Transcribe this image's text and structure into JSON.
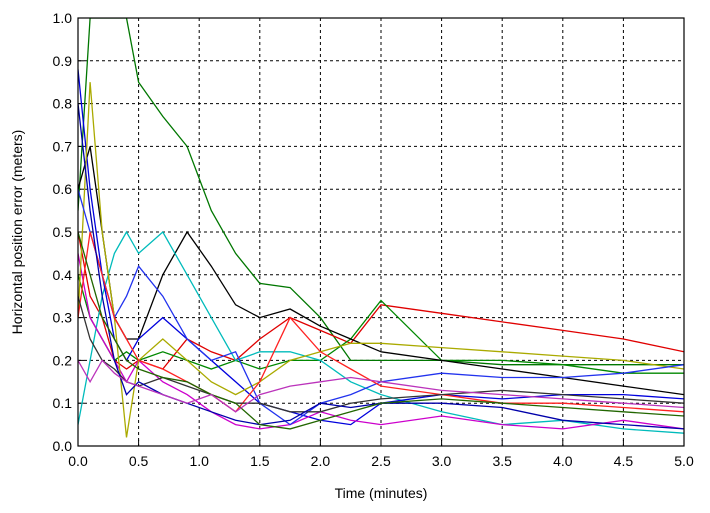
{
  "chart_data": {
    "type": "line",
    "xlabel": "Time (minutes)",
    "ylabel": "Horizontal position error (meters)",
    "x": [
      0,
      0.1,
      0.2,
      0.3,
      0.4,
      0.5,
      0.7,
      0.9,
      1.1,
      1.3,
      1.5,
      1.75,
      2,
      2.25,
      2.5,
      3,
      3.5,
      4,
      4.5,
      5
    ],
    "xlim": [
      0,
      5
    ],
    "ylim": [
      0,
      1
    ],
    "xticks": [
      {
        "value": 0,
        "label": "0.0"
      },
      0.5,
      {
        "value": 1,
        "label": "1.0"
      },
      1.5,
      {
        "value": 2,
        "label": "2.0"
      },
      2.5,
      {
        "value": 3,
        "label": "3.0"
      },
      3.5,
      {
        "value": 4,
        "label": "4.0"
      },
      4.5,
      {
        "value": 5,
        "label": "5.0"
      }
    ],
    "yticks": [
      {
        "value": 0,
        "label": "0.0"
      },
      0.1,
      0.2,
      0.3,
      0.4,
      0.5,
      0.6,
      0.7,
      0.8,
      0.9,
      {
        "value": 1,
        "label": "1.0"
      }
    ],
    "grid": true,
    "series": [
      {
        "color": "#007700",
        "values": [
          0.55,
          1.0,
          1.0,
          1.0,
          1.0,
          0.85,
          0.77,
          0.7,
          0.55,
          0.45,
          0.38,
          0.37,
          0.3,
          0.2,
          0.2,
          0.2,
          0.19,
          0.19,
          0.19,
          0.19
        ]
      },
      {
        "color": "#e00000",
        "values": [
          0.5,
          0.35,
          0.3,
          0.2,
          0.18,
          0.2,
          0.18,
          0.25,
          0.22,
          0.2,
          0.25,
          0.3,
          0.27,
          0.24,
          0.33,
          0.31,
          0.29,
          0.27,
          0.25,
          0.22
        ]
      },
      {
        "color": "#008800",
        "values": [
          0.4,
          0.3,
          0.25,
          0.2,
          0.22,
          0.2,
          0.22,
          0.2,
          0.18,
          0.2,
          0.18,
          0.2,
          0.2,
          0.25,
          0.34,
          0.2,
          0.2,
          0.19,
          0.17,
          0.17
        ]
      },
      {
        "color": "#000000",
        "values": [
          0.6,
          0.7,
          0.5,
          0.3,
          0.25,
          0.25,
          0.4,
          0.5,
          0.42,
          0.33,
          0.3,
          0.32,
          0.28,
          0.25,
          0.22,
          0.2,
          0.18,
          0.16,
          0.14,
          0.12
        ]
      },
      {
        "color": "#00bbbb",
        "values": [
          0.05,
          0.2,
          0.35,
          0.45,
          0.5,
          0.45,
          0.5,
          0.4,
          0.3,
          0.2,
          0.22,
          0.22,
          0.2,
          0.15,
          0.12,
          0.08,
          0.05,
          0.06,
          0.04,
          0.03
        ]
      },
      {
        "color": "#0000dd",
        "values": [
          0.88,
          0.6,
          0.4,
          0.25,
          0.2,
          0.25,
          0.3,
          0.25,
          0.2,
          0.15,
          0.1,
          0.08,
          0.06,
          0.05,
          0.1,
          0.12,
          0.11,
          0.12,
          0.12,
          0.11
        ]
      },
      {
        "color": "#cc00cc",
        "values": [
          0.45,
          0.3,
          0.25,
          0.2,
          0.15,
          0.2,
          0.15,
          0.12,
          0.08,
          0.05,
          0.04,
          0.05,
          0.08,
          0.06,
          0.05,
          0.07,
          0.05,
          0.04,
          0.06,
          0.04
        ]
      },
      {
        "color": "#aaaa00",
        "values": [
          0.3,
          0.85,
          0.5,
          0.3,
          0.02,
          0.2,
          0.25,
          0.2,
          0.15,
          0.12,
          0.15,
          0.2,
          0.22,
          0.24,
          0.24,
          0.23,
          0.22,
          0.21,
          0.2,
          0.18
        ]
      },
      {
        "color": "#2233ee",
        "values": [
          0.6,
          0.5,
          0.4,
          0.3,
          0.35,
          0.42,
          0.35,
          0.25,
          0.2,
          0.22,
          0.1,
          0.05,
          0.1,
          0.12,
          0.15,
          0.17,
          0.16,
          0.16,
          0.17,
          0.19
        ]
      },
      {
        "color": "#ff2222",
        "values": [
          0.3,
          0.5,
          0.4,
          0.3,
          0.25,
          0.2,
          0.18,
          0.15,
          0.12,
          0.08,
          0.15,
          0.3,
          0.22,
          0.18,
          0.14,
          0.12,
          0.1,
          0.1,
          0.09,
          0.08
        ]
      },
      {
        "color": "#333333",
        "values": [
          0.35,
          0.25,
          0.2,
          0.18,
          0.15,
          0.14,
          0.16,
          0.14,
          0.12,
          0.1,
          0.1,
          0.08,
          0.08,
          0.1,
          0.11,
          0.12,
          0.13,
          0.12,
          0.11,
          0.1
        ]
      },
      {
        "color": "#0000aa",
        "values": [
          0.8,
          0.55,
          0.35,
          0.2,
          0.12,
          0.15,
          0.12,
          0.1,
          0.08,
          0.06,
          0.05,
          0.06,
          0.1,
          0.09,
          0.1,
          0.1,
          0.09,
          0.06,
          0.05,
          0.04
        ]
      },
      {
        "color": "#226600",
        "values": [
          0.5,
          0.4,
          0.3,
          0.25,
          0.2,
          0.18,
          0.16,
          0.15,
          0.12,
          0.1,
          0.05,
          0.04,
          0.06,
          0.08,
          0.1,
          0.11,
          0.1,
          0.09,
          0.08,
          0.07
        ]
      },
      {
        "color": "#bb33bb",
        "values": [
          0.2,
          0.15,
          0.2,
          0.17,
          0.15,
          0.14,
          0.12,
          0.1,
          0.12,
          0.08,
          0.12,
          0.14,
          0.15,
          0.16,
          0.15,
          0.13,
          0.12,
          0.11,
          0.1,
          0.09
        ]
      }
    ]
  }
}
